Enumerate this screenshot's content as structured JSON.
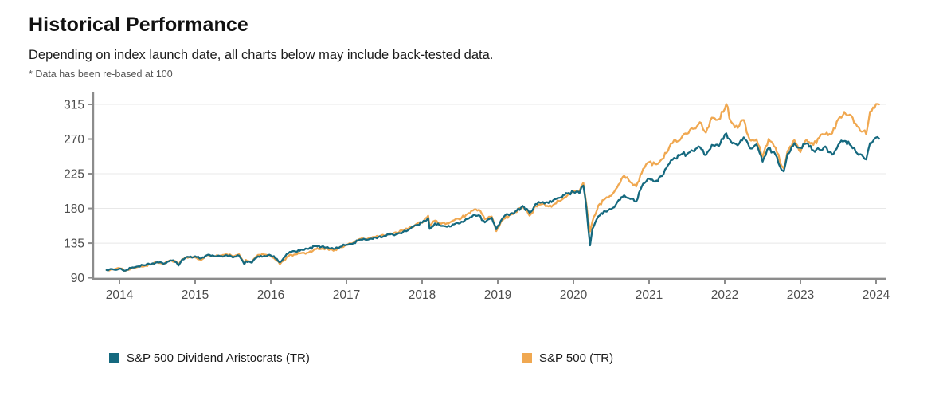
{
  "header": {
    "title": "Historical Performance",
    "subtitle": "Depending on index launch date, all charts below may include back-tested data.",
    "note": "* Data has been re-based at 100"
  },
  "chart_data": {
    "type": "line",
    "title": "Historical Performance",
    "xlabel": "",
    "ylabel": "",
    "grid": "horizontal",
    "legend_position": "bottom",
    "x_ticks": [
      2014,
      2015,
      2016,
      2017,
      2018,
      2019,
      2020,
      2021,
      2022,
      2023,
      2024
    ],
    "y_ticks": [
      315,
      270,
      225,
      180,
      135,
      90
    ],
    "xlim": [
      2013.8,
      2024.13
    ],
    "ylim": [
      90,
      330
    ],
    "axis_color": "#8c8c8c",
    "grid_color": "#e8e8e8",
    "tick_label_color": "#4d4d4d",
    "x": [
      2013.83,
      2013.92,
      2014.0,
      2014.08,
      2014.17,
      2014.25,
      2014.33,
      2014.42,
      2014.5,
      2014.58,
      2014.67,
      2014.75,
      2014.78,
      2014.83,
      2014.92,
      2015.0,
      2015.08,
      2015.17,
      2015.25,
      2015.33,
      2015.42,
      2015.5,
      2015.58,
      2015.65,
      2015.67,
      2015.75,
      2015.83,
      2015.92,
      2016.0,
      2016.08,
      2016.12,
      2016.17,
      2016.25,
      2016.33,
      2016.42,
      2016.5,
      2016.58,
      2016.67,
      2016.75,
      2016.83,
      2016.92,
      2017.0,
      2017.08,
      2017.17,
      2017.25,
      2017.33,
      2017.42,
      2017.5,
      2017.58,
      2017.67,
      2017.75,
      2017.83,
      2017.92,
      2018.0,
      2018.08,
      2018.1,
      2018.17,
      2018.25,
      2018.33,
      2018.42,
      2018.5,
      2018.58,
      2018.67,
      2018.75,
      2018.83,
      2018.92,
      2018.98,
      2019.0,
      2019.08,
      2019.17,
      2019.25,
      2019.33,
      2019.42,
      2019.5,
      2019.58,
      2019.67,
      2019.75,
      2019.83,
      2019.92,
      2020.0,
      2020.08,
      2020.13,
      2020.17,
      2020.22,
      2020.25,
      2020.33,
      2020.42,
      2020.5,
      2020.58,
      2020.67,
      2020.75,
      2020.83,
      2020.92,
      2021.0,
      2021.08,
      2021.17,
      2021.25,
      2021.33,
      2021.42,
      2021.5,
      2021.58,
      2021.67,
      2021.75,
      2021.83,
      2021.92,
      2022.0,
      2022.02,
      2022.08,
      2022.17,
      2022.25,
      2022.33,
      2022.42,
      2022.5,
      2022.58,
      2022.67,
      2022.75,
      2022.78,
      2022.83,
      2022.92,
      2023.0,
      2023.08,
      2023.17,
      2023.25,
      2023.33,
      2023.42,
      2023.5,
      2023.58,
      2023.67,
      2023.75,
      2023.83,
      2023.87,
      2023.92,
      2024.0,
      2024.04
    ],
    "series": [
      {
        "name": "S&P 500 Dividend Aristocrats (TR)",
        "color": "#15697F",
        "values": [
          100.0,
          100.8,
          101.8,
          99.3,
          103.5,
          104.9,
          106.2,
          108.0,
          110.2,
          108.2,
          112.5,
          110.3,
          105.9,
          114.0,
          116.9,
          117.9,
          115.2,
          120.0,
          118.2,
          118.0,
          119.2,
          116.4,
          118.8,
          107.5,
          111.5,
          109.5,
          117.8,
          118.3,
          118.9,
          114.5,
          110.0,
          115.6,
          123.5,
          124.0,
          126.1,
          127.5,
          131.0,
          130.2,
          129.8,
          127.4,
          130.3,
          132.9,
          134.2,
          139.3,
          139.5,
          140.8,
          142.6,
          144.2,
          146.3,
          146.7,
          149.8,
          153.0,
          158.3,
          161.7,
          167.5,
          153.5,
          160.6,
          157.3,
          156.2,
          159.3,
          160.6,
          166.2,
          170.6,
          171.2,
          162.0,
          168.0,
          153.0,
          157.3,
          169.2,
          173.4,
          177.2,
          183.3,
          174.3,
          185.7,
          187.8,
          187.0,
          192.0,
          194.2,
          199.5,
          201.3,
          199.8,
          209.5,
          181.7,
          132.0,
          153.3,
          169.7,
          176.2,
          179.0,
          188.2,
          197.0,
          192.3,
          188.9,
          212.0,
          218.8,
          214.6,
          221.9,
          236.3,
          245.5,
          249.9,
          250.4,
          254.6,
          259.7,
          249.2,
          262.5,
          260.5,
          275.7,
          277.5,
          267.1,
          261.9,
          272.2,
          258.2,
          263.1,
          240.8,
          258.5,
          249.8,
          230.0,
          228.0,
          250.7,
          264.7,
          258.6,
          264.3,
          255.3,
          256.5,
          260.4,
          249.8,
          262.6,
          267.5,
          261.2,
          251.4,
          247.0,
          243.5,
          264.8,
          272.0,
          270.5
        ]
      },
      {
        "name": "S&P 500 (TR)",
        "color": "#F0A851",
        "values": [
          100.0,
          101.0,
          102.5,
          99.0,
          103.5,
          104.3,
          105.1,
          107.6,
          109.8,
          108.3,
          112.6,
          111.0,
          106.8,
          113.8,
          116.8,
          116.5,
          113.0,
          119.5,
          117.6,
          118.8,
          120.3,
          118.0,
          120.5,
          109.0,
          113.2,
          110.4,
          119.7,
          120.1,
          118.2,
          112.3,
          107.5,
          112.2,
          119.8,
          120.2,
          122.4,
          122.7,
          127.3,
          127.4,
          127.5,
          125.1,
          129.8,
          132.3,
          134.8,
          140.2,
          140.4,
          141.8,
          143.8,
          144.7,
          147.7,
          148.2,
          151.2,
          154.7,
          159.5,
          161.3,
          170.5,
          157.5,
          164.2,
          160.0,
          160.7,
          164.5,
          165.5,
          171.7,
          177.3,
          178.3,
          166.1,
          169.5,
          150.5,
          154.2,
          166.5,
          171.9,
          175.2,
          182.3,
          170.7,
          182.8,
          185.4,
          182.5,
          185.9,
          189.9,
          196.8,
          202.7,
          202.7,
          213.5,
          186.0,
          150.0,
          163.0,
          183.9,
          192.7,
          196.5,
          207.6,
          222.5,
          214.1,
          208.4,
          231.2,
          240.1,
          237.6,
          244.2,
          254.9,
          268.5,
          270.4,
          276.7,
          283.3,
          291.9,
          278.3,
          297.8,
          295.8,
          309.0,
          315.5,
          293.0,
          284.3,
          294.8,
          269.1,
          269.6,
          247.4,
          270.2,
          259.2,
          235.3,
          232.0,
          254.3,
          268.6,
          253.1,
          269.0,
          262.4,
          272.1,
          276.3,
          277.5,
          295.8,
          305.3,
          300.5,
          286.1,
          280.1,
          276.0,
          305.7,
          315.5,
          315.0
        ]
      }
    ]
  }
}
